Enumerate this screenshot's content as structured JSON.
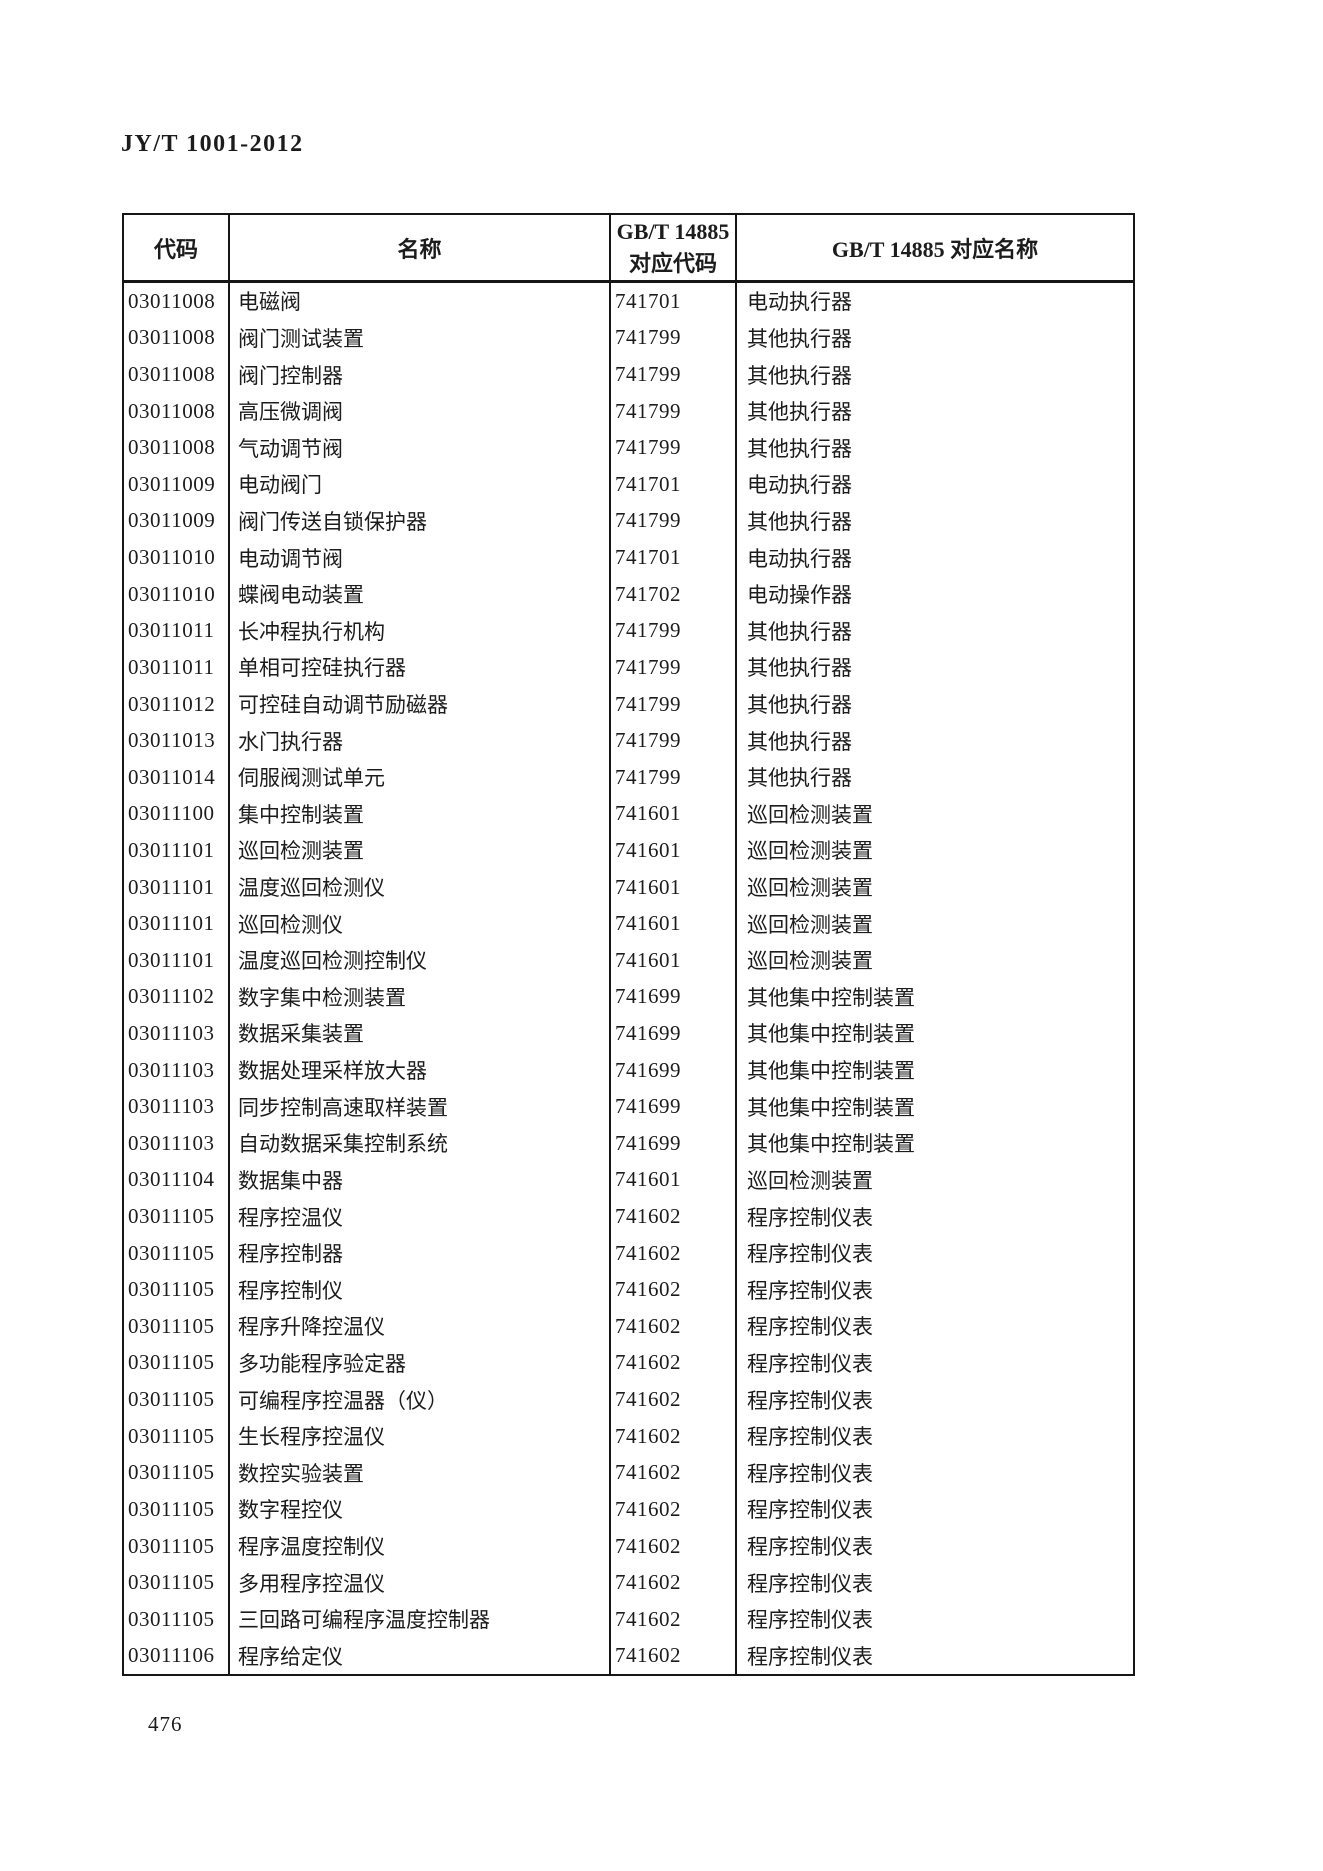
{
  "page": {
    "doc_code": "JY/T 1001-2012",
    "page_number": "476"
  },
  "table": {
    "headers": {
      "code": "代码",
      "name": "名称",
      "gbt_code_line1": "GB/T 14885",
      "gbt_code_line2": "对应代码",
      "gbt_name": "GB/T 14885 对应名称"
    },
    "rows": [
      {
        "code": "03011008",
        "name": "电磁阀",
        "gbt_code": "741701",
        "gbt_name": "电动执行器"
      },
      {
        "code": "03011008",
        "name": "阀门测试装置",
        "gbt_code": "741799",
        "gbt_name": "其他执行器"
      },
      {
        "code": "03011008",
        "name": "阀门控制器",
        "gbt_code": "741799",
        "gbt_name": "其他执行器"
      },
      {
        "code": "03011008",
        "name": "高压微调阀",
        "gbt_code": "741799",
        "gbt_name": "其他执行器"
      },
      {
        "code": "03011008",
        "name": "气动调节阀",
        "gbt_code": "741799",
        "gbt_name": "其他执行器"
      },
      {
        "code": "03011009",
        "name": "电动阀门",
        "gbt_code": "741701",
        "gbt_name": "电动执行器"
      },
      {
        "code": "03011009",
        "name": "阀门传送自锁保护器",
        "gbt_code": "741799",
        "gbt_name": "其他执行器"
      },
      {
        "code": "03011010",
        "name": "电动调节阀",
        "gbt_code": "741701",
        "gbt_name": "电动执行器"
      },
      {
        "code": "03011010",
        "name": "蝶阀电动装置",
        "gbt_code": "741702",
        "gbt_name": "电动操作器"
      },
      {
        "code": "03011011",
        "name": "长冲程执行机构",
        "gbt_code": "741799",
        "gbt_name": "其他执行器"
      },
      {
        "code": "03011011",
        "name": "单相可控硅执行器",
        "gbt_code": "741799",
        "gbt_name": "其他执行器"
      },
      {
        "code": "03011012",
        "name": "可控硅自动调节励磁器",
        "gbt_code": "741799",
        "gbt_name": "其他执行器"
      },
      {
        "code": "03011013",
        "name": "水门执行器",
        "gbt_code": "741799",
        "gbt_name": "其他执行器"
      },
      {
        "code": "03011014",
        "name": "伺服阀测试单元",
        "gbt_code": "741799",
        "gbt_name": "其他执行器"
      },
      {
        "code": "03011100",
        "name": "集中控制装置",
        "gbt_code": "741601",
        "gbt_name": "巡回检测装置"
      },
      {
        "code": "03011101",
        "name": "巡回检测装置",
        "gbt_code": "741601",
        "gbt_name": "巡回检测装置"
      },
      {
        "code": "03011101",
        "name": "温度巡回检测仪",
        "gbt_code": "741601",
        "gbt_name": "巡回检测装置"
      },
      {
        "code": "03011101",
        "name": "巡回检测仪",
        "gbt_code": "741601",
        "gbt_name": "巡回检测装置"
      },
      {
        "code": "03011101",
        "name": "温度巡回检测控制仪",
        "gbt_code": "741601",
        "gbt_name": "巡回检测装置"
      },
      {
        "code": "03011102",
        "name": "数字集中检测装置",
        "gbt_code": "741699",
        "gbt_name": "其他集中控制装置"
      },
      {
        "code": "03011103",
        "name": "数据采集装置",
        "gbt_code": "741699",
        "gbt_name": "其他集中控制装置"
      },
      {
        "code": "03011103",
        "name": "数据处理采样放大器",
        "gbt_code": "741699",
        "gbt_name": "其他集中控制装置"
      },
      {
        "code": "03011103",
        "name": "同步控制高速取样装置",
        "gbt_code": "741699",
        "gbt_name": "其他集中控制装置"
      },
      {
        "code": "03011103",
        "name": "自动数据采集控制系统",
        "gbt_code": "741699",
        "gbt_name": "其他集中控制装置"
      },
      {
        "code": "03011104",
        "name": "数据集中器",
        "gbt_code": "741601",
        "gbt_name": "巡回检测装置"
      },
      {
        "code": "03011105",
        "name": "程序控温仪",
        "gbt_code": "741602",
        "gbt_name": "程序控制仪表"
      },
      {
        "code": "03011105",
        "name": "程序控制器",
        "gbt_code": "741602",
        "gbt_name": "程序控制仪表"
      },
      {
        "code": "03011105",
        "name": "程序控制仪",
        "gbt_code": "741602",
        "gbt_name": "程序控制仪表"
      },
      {
        "code": "03011105",
        "name": "程序升降控温仪",
        "gbt_code": "741602",
        "gbt_name": "程序控制仪表"
      },
      {
        "code": "03011105",
        "name": "多功能程序验定器",
        "gbt_code": "741602",
        "gbt_name": "程序控制仪表"
      },
      {
        "code": "03011105",
        "name": "可编程序控温器（仪）",
        "gbt_code": "741602",
        "gbt_name": "程序控制仪表"
      },
      {
        "code": "03011105",
        "name": "生长程序控温仪",
        "gbt_code": "741602",
        "gbt_name": "程序控制仪表"
      },
      {
        "code": "03011105",
        "name": "数控实验装置",
        "gbt_code": "741602",
        "gbt_name": "程序控制仪表"
      },
      {
        "code": "03011105",
        "name": "数字程控仪",
        "gbt_code": "741602",
        "gbt_name": "程序控制仪表"
      },
      {
        "code": "03011105",
        "name": "程序温度控制仪",
        "gbt_code": "741602",
        "gbt_name": "程序控制仪表"
      },
      {
        "code": "03011105",
        "name": "多用程序控温仪",
        "gbt_code": "741602",
        "gbt_name": "程序控制仪表"
      },
      {
        "code": "03011105",
        "name": "三回路可编程序温度控制器",
        "gbt_code": "741602",
        "gbt_name": "程序控制仪表"
      },
      {
        "code": "03011106",
        "name": "程序给定仪",
        "gbt_code": "741602",
        "gbt_name": "程序控制仪表"
      }
    ]
  }
}
